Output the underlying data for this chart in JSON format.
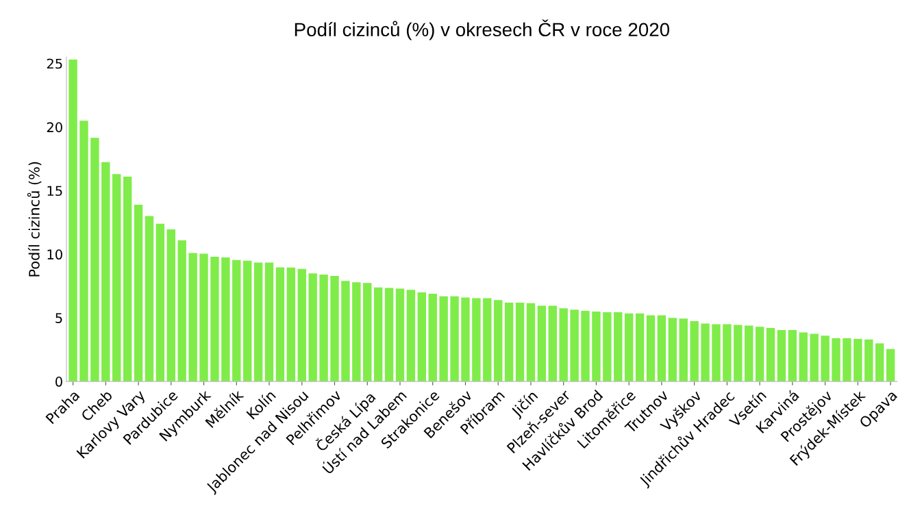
{
  "chart_data": {
    "type": "bar",
    "title": "Podíl cizinců (%) v okresech ČR v roce 2020",
    "ylabel": "Podíl cizinců (%)",
    "categories": [
      "Praha",
      null,
      null,
      "Cheb",
      null,
      null,
      "Karlovy Vary",
      null,
      null,
      "Pardubice",
      null,
      null,
      "Nymburk",
      null,
      null,
      "Mělník",
      null,
      null,
      "Kolín",
      null,
      null,
      "Jablonec nad Nisou",
      null,
      null,
      "Pelhřimov",
      null,
      null,
      "Česká Lípa",
      null,
      null,
      "Ústí nad Labem",
      null,
      null,
      "Strakonice",
      null,
      null,
      "Benešov",
      null,
      null,
      "Příbram",
      null,
      null,
      "Jičín",
      null,
      null,
      "Plzeň-sever",
      null,
      null,
      "Havlíčkův Brod",
      null,
      null,
      "Litoměřice",
      null,
      null,
      "Trutnov",
      null,
      null,
      "Vyškov",
      null,
      null,
      "Jindřichův Hradec",
      null,
      null,
      "Vsetín",
      null,
      null,
      "Karviná",
      null,
      null,
      "Prostějov",
      null,
      null,
      "Frýdek-Místek",
      null,
      null,
      "Opava"
    ],
    "values": [
      25.3,
      20.5,
      19.15,
      17.25,
      16.3,
      16.1,
      13.9,
      13.0,
      12.4,
      11.95,
      11.1,
      10.1,
      10.05,
      9.8,
      9.75,
      9.55,
      9.5,
      9.35,
      9.35,
      8.97,
      8.95,
      8.85,
      8.5,
      8.4,
      8.3,
      7.9,
      7.8,
      7.75,
      7.4,
      7.35,
      7.3,
      7.2,
      7.0,
      6.9,
      6.7,
      6.7,
      6.6,
      6.55,
      6.55,
      6.4,
      6.2,
      6.2,
      6.15,
      5.95,
      5.95,
      5.75,
      5.65,
      5.55,
      5.5,
      5.45,
      5.44,
      5.35,
      5.35,
      5.2,
      5.2,
      5.0,
      4.95,
      4.75,
      4.55,
      4.5,
      4.5,
      4.45,
      4.4,
      4.3,
      4.2,
      4.05,
      4.05,
      3.85,
      3.75,
      3.6,
      3.4,
      3.4,
      3.35,
      3.3,
      3.0,
      2.55
    ],
    "color": "#80ec4a",
    "ylim": [
      0,
      25.5
    ],
    "yticks": [
      0,
      5,
      10,
      15,
      20,
      25
    ],
    "grid": false,
    "legend": false
  }
}
